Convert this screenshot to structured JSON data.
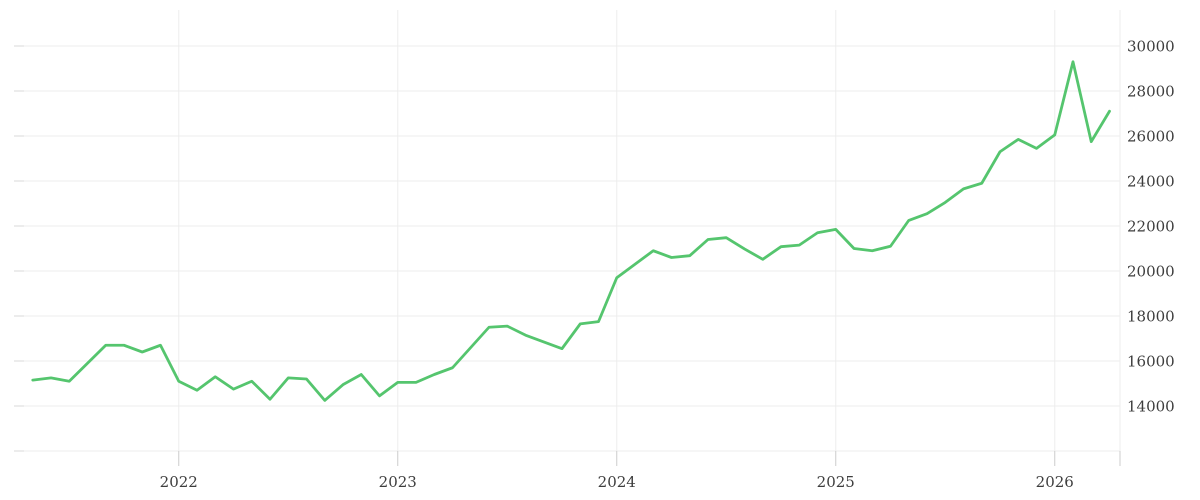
{
  "chart": {
    "colors": {
      "background": "#ffffff",
      "line": "#55c56e",
      "grid": "#ededed",
      "left_tick": "#d9d9d9",
      "bottom_tick": "#cccccc",
      "label": "#3d3d3d"
    },
    "x_axis": {
      "labels": [
        "2022",
        "2023",
        "2024",
        "2025",
        "2026"
      ]
    },
    "y_axis": {
      "labels": [
        "14000",
        "16000",
        "18000",
        "20000",
        "22000",
        "24000",
        "26000",
        "28000",
        "30000"
      ]
    }
  },
  "chart_data": {
    "type": "line",
    "title": "",
    "frequency": "monthly",
    "grid": true,
    "legend": false,
    "ylim": [
      12000,
      31600
    ],
    "y_ticks": [
      14000,
      16000,
      18000,
      20000,
      22000,
      24000,
      26000,
      28000,
      30000
    ],
    "x_tick_labels": [
      "2022",
      "2023",
      "2024",
      "2025",
      "2026"
    ],
    "x": [
      "2021-05",
      "2021-06",
      "2021-07",
      "2021-08",
      "2021-09",
      "2021-10",
      "2021-11",
      "2021-12",
      "2022-01",
      "2022-02",
      "2022-03",
      "2022-04",
      "2022-05",
      "2022-06",
      "2022-07",
      "2022-08",
      "2022-09",
      "2022-10",
      "2022-11",
      "2022-12",
      "2023-01",
      "2023-02",
      "2023-03",
      "2023-04",
      "2023-05",
      "2023-06",
      "2023-07",
      "2023-08",
      "2023-09",
      "2023-10",
      "2023-11",
      "2023-12",
      "2024-01",
      "2024-02",
      "2024-03",
      "2024-04",
      "2024-05",
      "2024-06",
      "2024-07",
      "2024-08",
      "2024-09",
      "2024-10",
      "2024-11",
      "2024-12",
      "2025-01",
      "2025-02",
      "2025-03",
      "2025-04",
      "2025-05",
      "2025-06",
      "2025-07",
      "2025-08",
      "2025-09",
      "2025-10",
      "2025-11",
      "2025-12",
      "2026-01",
      "2026-02",
      "2026-03",
      "2026-04"
    ],
    "series": [
      {
        "name": "value",
        "values": [
          15150,
          15250,
          15100,
          15900,
          16700,
          16700,
          16400,
          16700,
          15100,
          14700,
          15300,
          14750,
          15100,
          14300,
          15250,
          15200,
          14250,
          14950,
          15400,
          14450,
          15050,
          15050,
          15400,
          15700,
          16600,
          17500,
          17550,
          17150,
          16850,
          16550,
          17650,
          17750,
          19700,
          20300,
          20900,
          20600,
          20680,
          21400,
          21480,
          20980,
          20520,
          21080,
          21150,
          21700,
          21850,
          21000,
          20900,
          21100,
          22250,
          22550,
          23050,
          23650,
          23900,
          25300,
          25850,
          25450,
          26050,
          29300,
          25750,
          27100
        ]
      }
    ]
  }
}
